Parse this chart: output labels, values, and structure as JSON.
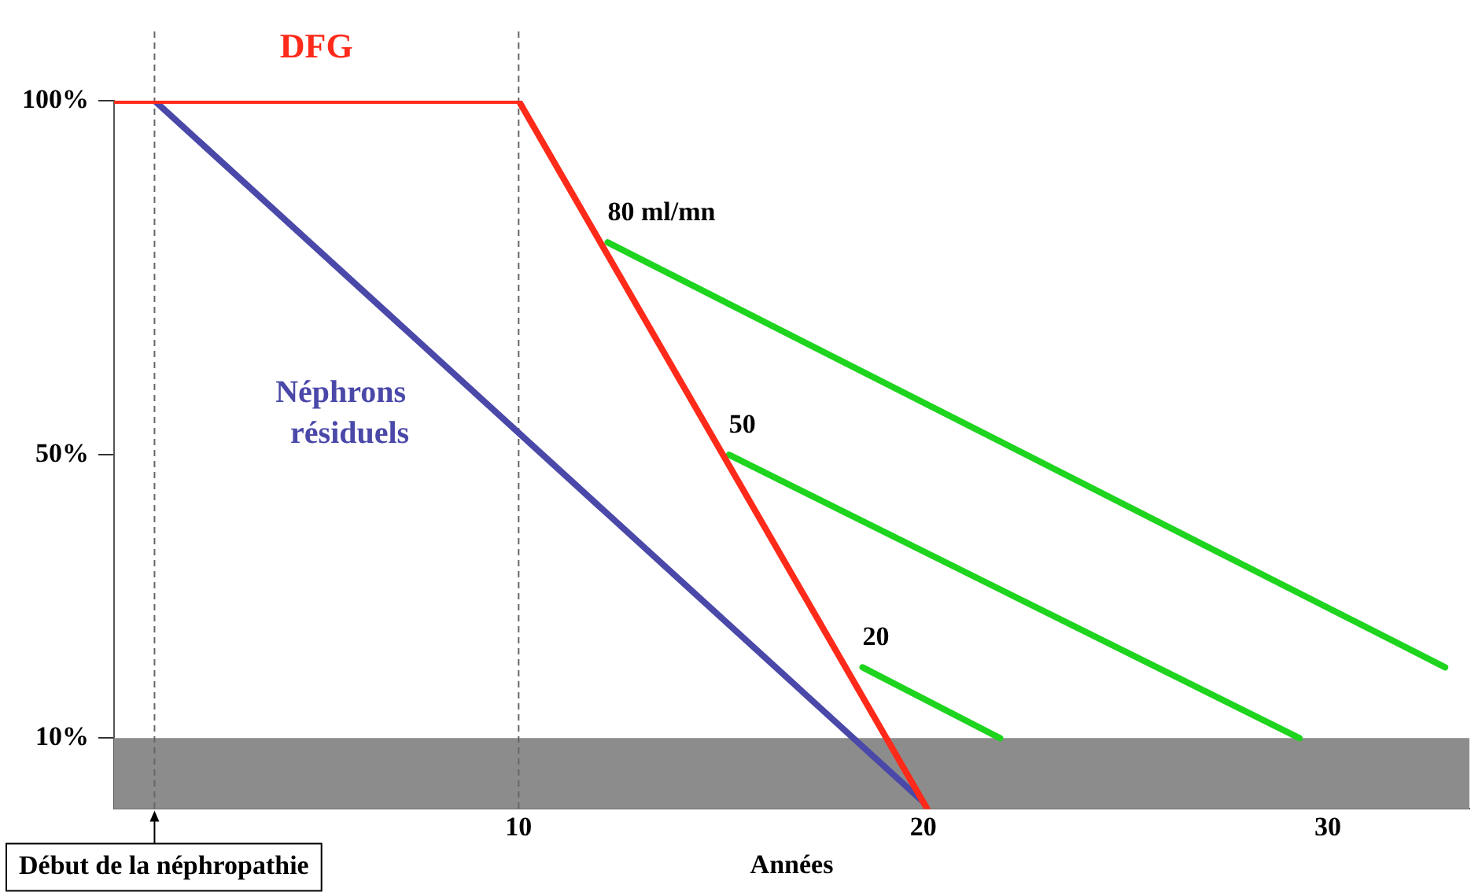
{
  "chart_data": {
    "type": "line",
    "xlabel": "Années",
    "xlim": [
      0,
      33.5
    ],
    "xticks": [
      10,
      20,
      30
    ],
    "ylim": [
      0,
      100
    ],
    "yticks": [
      {
        "value": 100,
        "label": "100%"
      },
      {
        "value": 50,
        "label": "50%"
      },
      {
        "value": 10,
        "label": "10%"
      }
    ],
    "series": [
      {
        "name": "DFG",
        "color": "#ff2a1a",
        "x": [
          0,
          10,
          20.1
        ],
        "values": [
          100,
          100,
          0
        ]
      },
      {
        "name": "Néphrons résiduels",
        "color": "#4a48a8",
        "x": [
          1,
          20
        ],
        "values": [
          100,
          1
        ]
      },
      {
        "name": "80 ml/mn",
        "color": "#1ed41e",
        "x": [
          12.2,
          32.9
        ],
        "values": [
          80,
          20
        ]
      },
      {
        "name": "50",
        "color": "#1ed41e",
        "x": [
          15.2,
          29.3
        ],
        "values": [
          50,
          10
        ]
      },
      {
        "name": "20",
        "color": "#1ed41e",
        "x": [
          18.5,
          21.9
        ],
        "values": [
          20,
          10
        ]
      }
    ],
    "ref_lines": [
      {
        "axis": "x",
        "value": 1,
        "label": "Début de la néphropathie",
        "color": "#666666",
        "line_style": "dashed"
      },
      {
        "axis": "x",
        "value": 10,
        "color": "#666666",
        "line_style": "dashed"
      }
    ],
    "bands": [
      {
        "axis": "y",
        "from": 0,
        "to": 10,
        "color": "#8c8c8c"
      }
    ],
    "grid": false,
    "legend": false,
    "marker": "none",
    "line_style": "solid"
  }
}
